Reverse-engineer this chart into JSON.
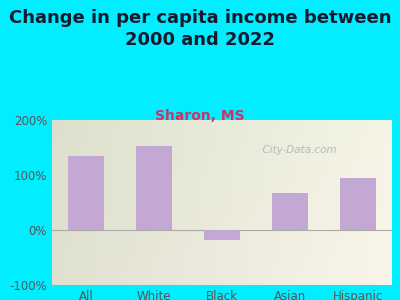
{
  "title": "Change in per capita income between\n2000 and 2022",
  "subtitle": "Sharon, MS",
  "categories": [
    "All",
    "White",
    "Black",
    "Asian",
    "Hispanic"
  ],
  "values": [
    135,
    152,
    -18,
    68,
    95
  ],
  "bar_color": "#c4a8d4",
  "title_fontsize": 13,
  "subtitle_fontsize": 10,
  "subtitle_color": "#cc3366",
  "background_outer": "#00eeff",
  "ylim": [
    -100,
    200
  ],
  "yticks": [
    -100,
    0,
    100,
    200
  ],
  "ytick_labels": [
    "-100%",
    "0%",
    "100%",
    "200%"
  ],
  "watermark": "  City-Data.com",
  "tick_color": "#555555",
  "hline_color": "#cccccc",
  "hline_y": 100,
  "bar_width": 0.52
}
